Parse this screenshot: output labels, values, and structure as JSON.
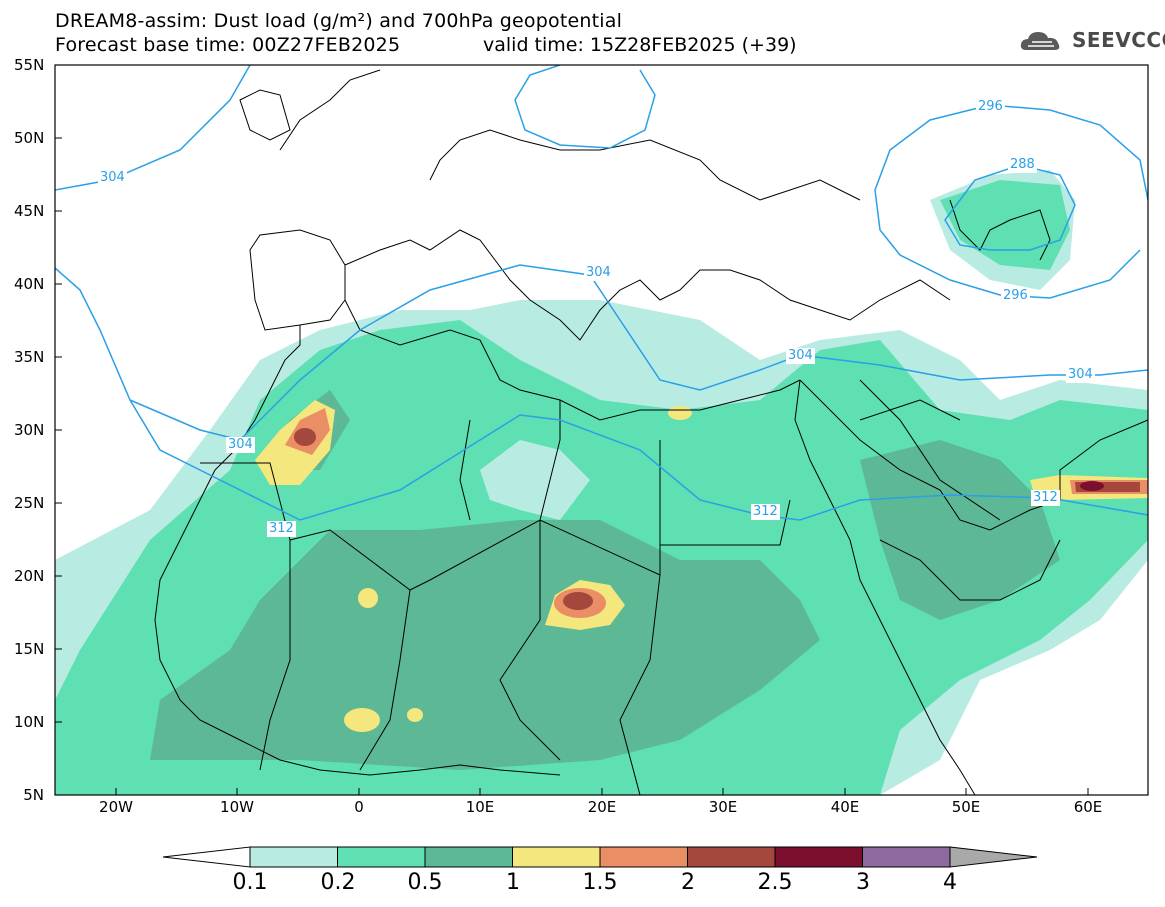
{
  "header": {
    "title_line1": "DREAM8-assim: Dust load (g/m²) and 700hPa geopotential",
    "title_line2": "Forecast base time: 00Z27FEB2025",
    "valid_time": "valid time: 15Z28FEB2025 (+39)",
    "logo_text": "SEEVCCC"
  },
  "map": {
    "extent": {
      "lon_min": -25,
      "lon_max": 65,
      "lat_min": 5,
      "lat_max": 55
    },
    "lat_labels": [
      "55N",
      "50N",
      "45N",
      "40N",
      "35N",
      "30N",
      "25N",
      "20N",
      "15N",
      "10N",
      "5N"
    ],
    "lon_labels": [
      "20W",
      "10W",
      "0",
      "10E",
      "20E",
      "30E",
      "40E",
      "50E",
      "60E"
    ],
    "contour_labels": [
      "304",
      "304",
      "296",
      "288",
      "296",
      "304",
      "304",
      "304",
      "312",
      "312",
      "312"
    ]
  },
  "colorbar": {
    "labels": [
      "0.1",
      "0.2",
      "0.5",
      "1",
      "1.5",
      "2",
      "2.5",
      "3",
      "4"
    ],
    "colors": [
      "#ffffff",
      "#b8ece3",
      "#5ee0b2",
      "#5db896",
      "#f4e77e",
      "#ea8e65",
      "#a4473c",
      "#7c0f2e",
      "#8e6a9f",
      "#a9a9a9"
    ]
  },
  "colors": {
    "contour": "#2aa0e6",
    "coast": "#000000",
    "d1": "#b8ece3",
    "d2": "#5ee0b2",
    "d3": "#5db896",
    "d4": "#f4e77e",
    "d5": "#ea8e65",
    "d6": "#a4473c",
    "d7": "#7c0f2e"
  }
}
